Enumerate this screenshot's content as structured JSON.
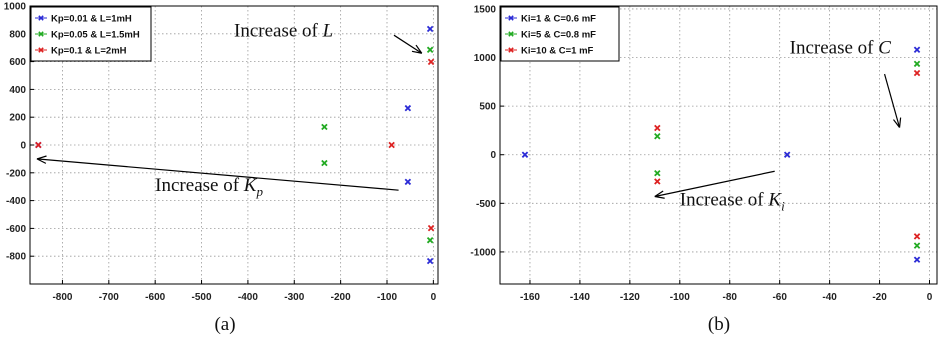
{
  "chart_data": [
    {
      "type": "scatter",
      "caption": "(a)",
      "xlim": [
        -870,
        10
      ],
      "ylim": [
        -1000,
        1000
      ],
      "xticks": [
        -800,
        -700,
        -600,
        -500,
        -400,
        -300,
        -200,
        -100,
        0
      ],
      "yticks": [
        -800,
        -600,
        -400,
        -200,
        0,
        200,
        400,
        600,
        800,
        1000
      ],
      "grid": true,
      "legend_position": "top-left",
      "series": [
        {
          "name": "Kp=0.01 & L=1mH",
          "color": "#2b2bd6",
          "points": [
            [
              -852,
              0
            ],
            [
              -55,
              265
            ],
            [
              -55,
              -265
            ],
            [
              -7,
              835
            ],
            [
              -7,
              -835
            ]
          ]
        },
        {
          "name": "Kp=0.05 & L=1.5mH",
          "color": "#22aa22",
          "points": [
            [
              -235,
              130
            ],
            [
              -235,
              -130
            ],
            [
              -7,
              685
            ],
            [
              -7,
              -685
            ]
          ]
        },
        {
          "name": "Kp=0.1 & L=2mH",
          "color": "#dd2222",
          "points": [
            [
              -852,
              0
            ],
            [
              -90,
              0
            ],
            [
              -5,
              598
            ],
            [
              -5,
              -598
            ]
          ]
        }
      ],
      "annotations": [
        {
          "text": "Increase of ",
          "var": "L",
          "sub": "",
          "from": [
            -85,
            790
          ],
          "to": [
            -25,
            660
          ],
          "label_at": [
            -430,
            780
          ]
        },
        {
          "text": "Increase of ",
          "var": "K",
          "sub": "p",
          "from": [
            -75,
            -325
          ],
          "to": [
            -855,
            -100
          ],
          "label_at": [
            -600,
            -330
          ]
        }
      ]
    },
    {
      "type": "scatter",
      "caption": "(b)",
      "xlim": [
        -172,
        3
      ],
      "ylim": [
        -1330,
        1530
      ],
      "xticks": [
        -160,
        -140,
        -120,
        -100,
        -80,
        -60,
        -40,
        -20,
        0
      ],
      "yticks": [
        -1000,
        -500,
        0,
        500,
        1000,
        1500
      ],
      "grid": true,
      "legend_position": "top-left",
      "series": [
        {
          "name": "Ki=1 & C=0.6 mF",
          "color": "#2b2bd6",
          "points": [
            [
              -162,
              0
            ],
            [
              -57,
              0
            ],
            [
              -5,
              1080
            ],
            [
              -5,
              -1080
            ]
          ]
        },
        {
          "name": "Ki=5 & C=0.8 mF",
          "color": "#22aa22",
          "points": [
            [
              -109,
              190
            ],
            [
              -109,
              -190
            ],
            [
              -5,
              935
            ],
            [
              -5,
              -935
            ]
          ]
        },
        {
          "name": "Ki=10 & C=1 mF",
          "color": "#dd2222",
          "points": [
            [
              -109,
              275
            ],
            [
              -109,
              -275
            ],
            [
              -5,
              840
            ],
            [
              -5,
              -840
            ]
          ]
        }
      ],
      "annotations": [
        {
          "text": "Increase of ",
          "var": "C",
          "sub": "",
          "from": [
            -18,
            830
          ],
          "to": [
            -12,
            280
          ],
          "label_at": [
            -56,
            1040
          ]
        },
        {
          "text": "Increase of ",
          "var": "K",
          "sub": "i",
          "from": [
            -62,
            -170
          ],
          "to": [
            -110,
            -430
          ],
          "label_at": [
            -100,
            -520
          ]
        }
      ]
    }
  ]
}
